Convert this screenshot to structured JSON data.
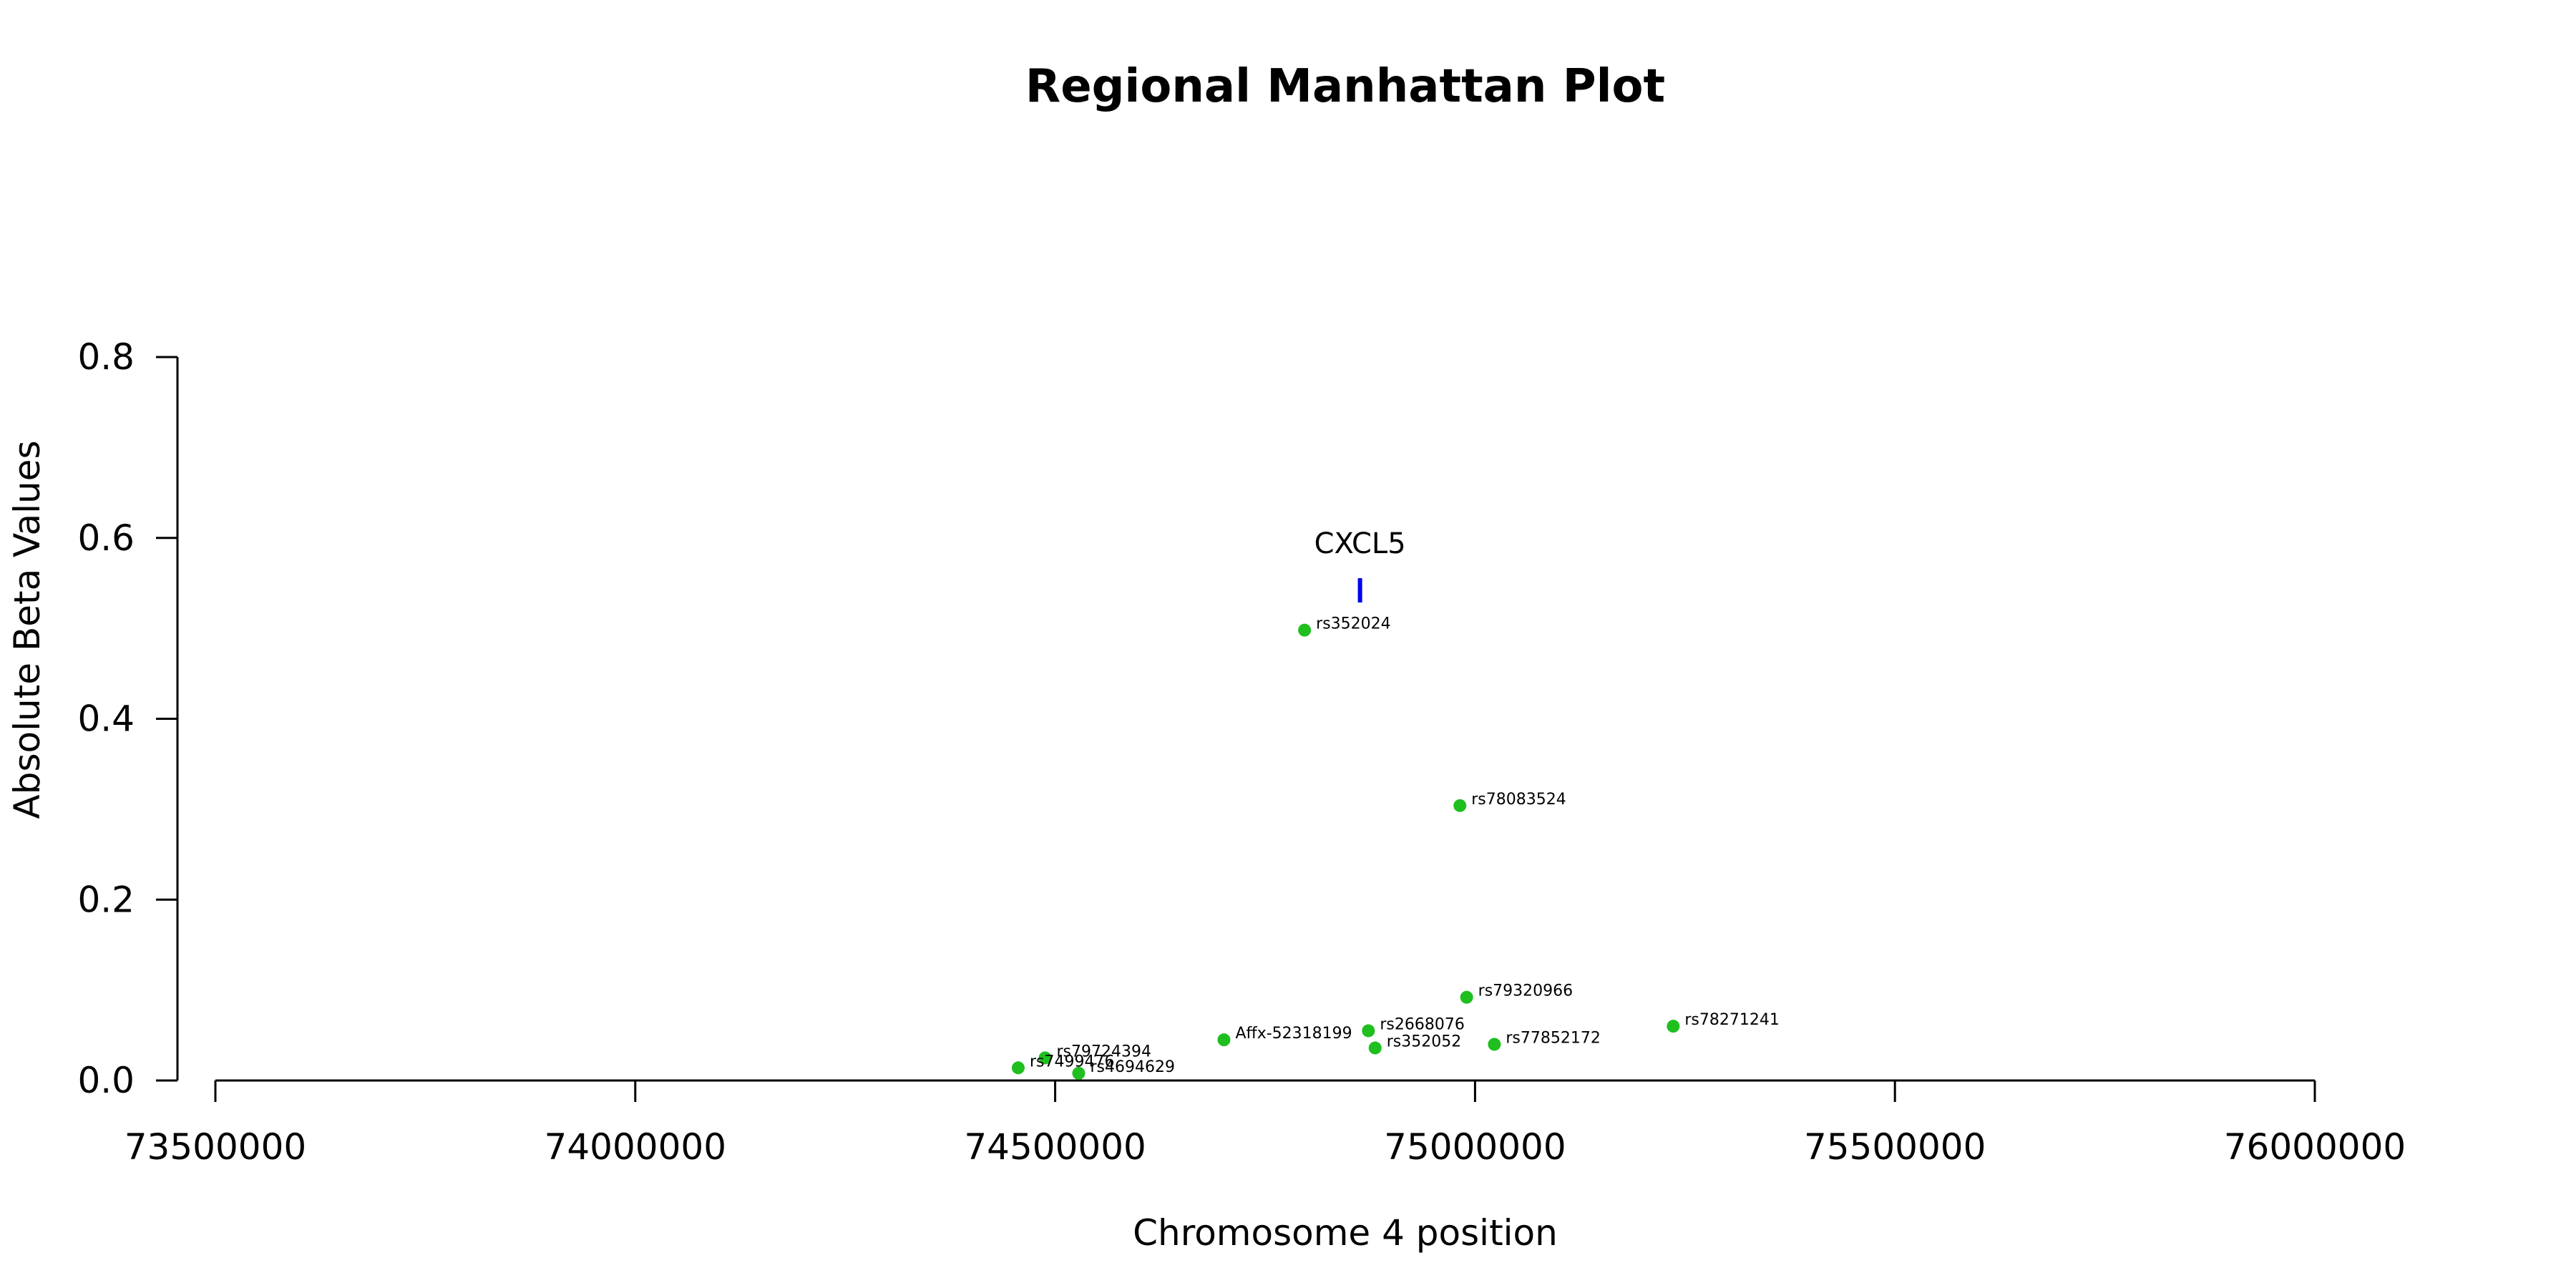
{
  "chart_data": {
    "type": "scatter",
    "title": "Regional Manhattan Plot",
    "xlabel": "Chromosome 4 position",
    "ylabel": "Absolute Beta Values",
    "xlim": [
      73500000,
      76000000
    ],
    "ylim": [
      0,
      0.8
    ],
    "x_ticks": [
      73500000,
      74000000,
      74500000,
      75000000,
      75500000,
      76000000
    ],
    "x_tick_labels": [
      "73500000",
      "74000000",
      "74500000",
      "75000000",
      "75500000",
      "76000000"
    ],
    "y_ticks": [
      0.0,
      0.2,
      0.4,
      0.6,
      0.8
    ],
    "y_tick_labels": [
      "0.0",
      "0.2",
      "0.4",
      "0.6",
      "0.8"
    ],
    "grid": false,
    "point_color": "#1fbf1f",
    "points": [
      {
        "label": "rs352024",
        "x": 74797000,
        "y": 0.498
      },
      {
        "label": "rs78083524",
        "x": 74982000,
        "y": 0.304
      },
      {
        "label": "rs79320966",
        "x": 74990000,
        "y": 0.092
      },
      {
        "label": "rs78271241",
        "x": 75236000,
        "y": 0.06
      },
      {
        "label": "rs2668076",
        "x": 74873000,
        "y": 0.055
      },
      {
        "label": "Affx-52318199",
        "x": 74701000,
        "y": 0.045
      },
      {
        "label": "rs77852172",
        "x": 75023000,
        "y": 0.04
      },
      {
        "label": "rs352052",
        "x": 74881000,
        "y": 0.036
      },
      {
        "label": "rs79724394",
        "x": 74488000,
        "y": 0.025
      },
      {
        "label": "rs7499476",
        "x": 74456000,
        "y": 0.014
      },
      {
        "label": "rs4694629",
        "x": 74528000,
        "y": 0.008
      }
    ],
    "genes": [
      {
        "name": "CXCL5",
        "x": 74863000,
        "y": 0.542,
        "color": "#0000ee"
      }
    ]
  }
}
